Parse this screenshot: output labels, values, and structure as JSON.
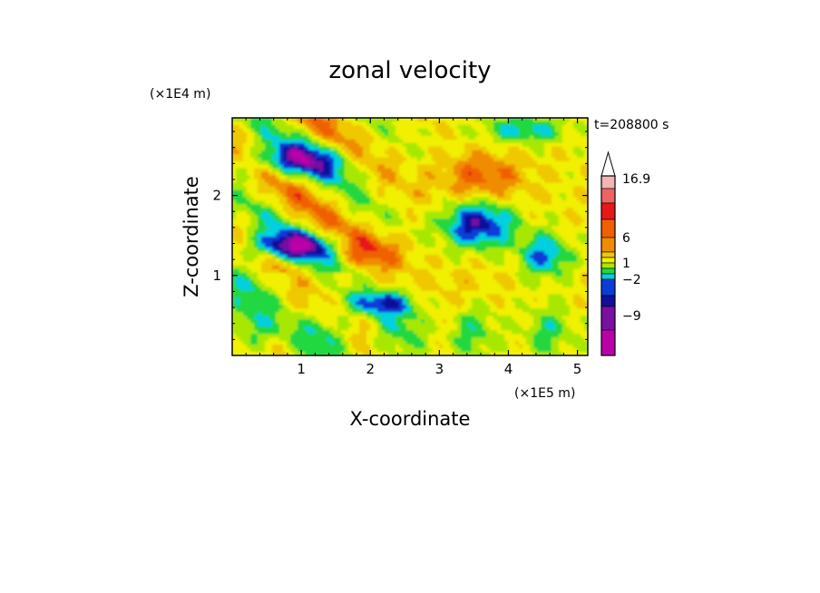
{
  "chart_data": {
    "type": "heatmap",
    "title": "zonal velocity",
    "xlabel": "X-coordinate",
    "ylabel": "Z-coordinate",
    "x_scale_label": "(×1E5 m)",
    "y_scale_label": "(×1E4 m)",
    "time_label": "t=208800 s",
    "xlim": [
      0,
      5.15
    ],
    "ylim": [
      0,
      2.97
    ],
    "x_ticks": [
      "1",
      "2",
      "3",
      "4",
      "5"
    ],
    "y_ticks": [
      "1",
      "2"
    ],
    "colorbar": {
      "colors": [
        "#ee00aa",
        "#bb00aa",
        "#7a10a0",
        "#10109c",
        "#0a3cd8",
        "#00d0e0",
        "#20d840",
        "#a8e800",
        "#f0f000",
        "#f0c800",
        "#f08c00",
        "#f06000",
        "#e81818",
        "#ee6464",
        "#f4b4b4"
      ],
      "labels": [
        {
          "text": "16.9",
          "level": 16.9
        },
        {
          "text": "6",
          "level": 6
        },
        {
          "text": "1",
          "level": 1
        },
        {
          "text": "−2",
          "level": -2
        },
        {
          "text": "−9",
          "level": -9
        }
      ],
      "extend": "max"
    }
  }
}
